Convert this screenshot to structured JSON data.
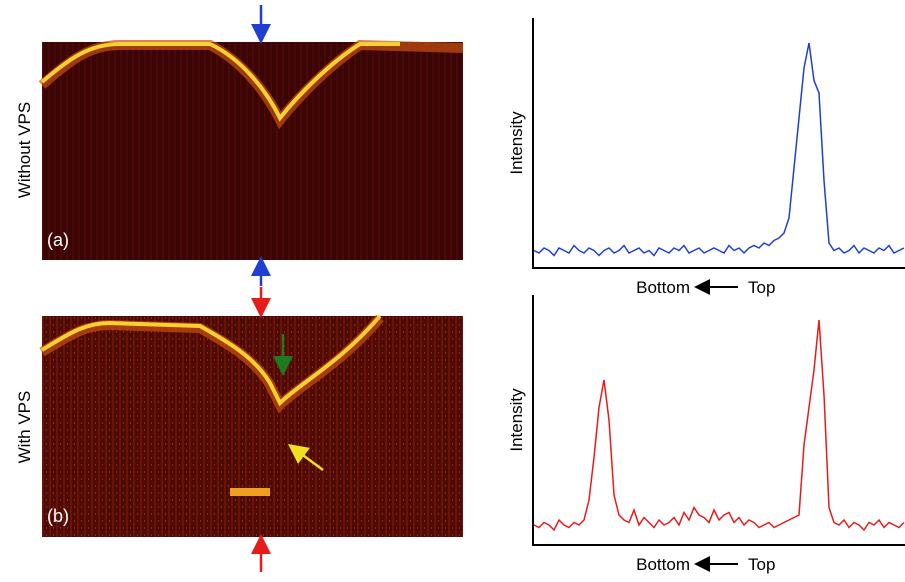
{
  "figure": {
    "panels": [
      {
        "side_label": "Without VPS",
        "panel_label": "(a)"
      },
      {
        "side_label": "With VPS",
        "panel_label": "(b)"
      }
    ]
  },
  "chart_data": [
    {
      "type": "line",
      "ylabel": "Intensity",
      "xlabel_left": "Bottom",
      "xlabel_right": "Top",
      "color": "#1f3fd1",
      "ylim": [
        0,
        100
      ],
      "values": [
        7,
        6,
        8,
        7,
        5,
        8,
        7,
        6,
        9,
        7,
        6,
        8,
        7,
        5,
        7,
        8,
        6,
        7,
        9,
        6,
        7,
        8,
        6,
        7,
        5,
        8,
        7,
        6,
        8,
        7,
        9,
        6,
        7,
        8,
        6,
        7,
        8,
        7,
        6,
        9,
        7,
        8,
        6,
        8,
        9,
        8,
        10,
        9,
        11,
        12,
        14,
        20,
        40,
        60,
        80,
        90,
        75,
        70,
        35,
        10,
        7,
        8,
        6,
        7,
        9,
        6,
        8,
        7,
        6,
        8,
        7,
        9,
        6,
        7,
        8
      ]
    },
    {
      "type": "line",
      "ylabel": "Intensity",
      "xlabel_left": "Bottom",
      "xlabel_right": "Top",
      "color": "#e81b1b",
      "ylim": [
        0,
        100
      ],
      "values": [
        8,
        7,
        9,
        8,
        6,
        10,
        8,
        7,
        9,
        8,
        10,
        18,
        35,
        55,
        66,
        50,
        20,
        12,
        10,
        9,
        14,
        8,
        11,
        9,
        7,
        10,
        8,
        9,
        11,
        8,
        13,
        10,
        15,
        12,
        11,
        9,
        14,
        10,
        12,
        13,
        9,
        11,
        8,
        10,
        9,
        7,
        8,
        9,
        7,
        8,
        9,
        10,
        11,
        12,
        40,
        55,
        70,
        90,
        60,
        15,
        9,
        8,
        10,
        7,
        9,
        8,
        6,
        9,
        8,
        10,
        7,
        9,
        8,
        7,
        9
      ]
    }
  ]
}
